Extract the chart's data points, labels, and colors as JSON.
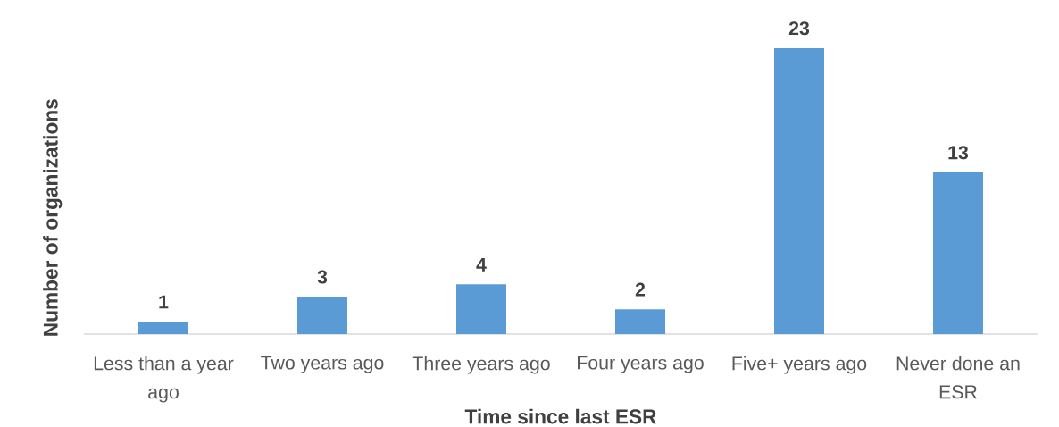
{
  "chart_data": {
    "type": "bar",
    "xlabel": "Time since last ESR",
    "ylabel": "Number of organizations",
    "categories": [
      "Less than a year ago",
      "Two years ago",
      "Three years ago",
      "Four years ago",
      "Five+ years ago",
      "Never done an ESR"
    ],
    "values": [
      1,
      3,
      4,
      2,
      23,
      13
    ],
    "color": "#5b9bd5",
    "data_labels": true,
    "tick_labels": "x"
  }
}
